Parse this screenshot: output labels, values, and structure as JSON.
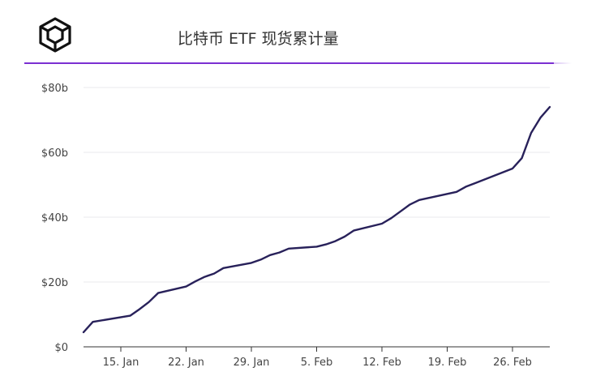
{
  "header": {
    "title": "比特币 ETF 现货累计量",
    "logo_icon": "cube-logo-icon",
    "accent_color": "#7b2fd1"
  },
  "chart_data": {
    "type": "line",
    "title": "比特币 ETF 现货累计量",
    "xlabel": "",
    "ylabel": "",
    "x_ticks": [
      "15. Jan",
      "22. Jan",
      "29. Jan",
      "5. Feb",
      "12. Feb",
      "19. Feb",
      "26. Feb"
    ],
    "y_ticks": [
      "$0",
      "$20b",
      "$40b",
      "$60b",
      "$80b"
    ],
    "ylim": [
      0,
      80
    ],
    "xlim": [
      "2024-01-11",
      "2024-03-01"
    ],
    "grid": true,
    "line_color": "#28215a",
    "series": [
      {
        "points": [
          [
            "2024-01-11",
            4.5
          ],
          [
            "2024-01-12",
            7.7
          ],
          [
            "2024-01-16",
            9.6
          ],
          [
            "2024-01-17",
            11.6
          ],
          [
            "2024-01-18",
            13.8
          ],
          [
            "2024-01-19",
            16.6
          ],
          [
            "2024-01-22",
            18.6
          ],
          [
            "2024-01-23",
            20.2
          ],
          [
            "2024-01-24",
            21.6
          ],
          [
            "2024-01-25",
            22.6
          ],
          [
            "2024-01-26",
            24.3
          ],
          [
            "2024-01-29",
            25.9
          ],
          [
            "2024-01-30",
            26.9
          ],
          [
            "2024-01-31",
            28.3
          ],
          [
            "2024-02-01",
            29.1
          ],
          [
            "2024-02-02",
            30.3
          ],
          [
            "2024-02-05",
            30.9
          ],
          [
            "2024-02-06",
            31.6
          ],
          [
            "2024-02-07",
            32.6
          ],
          [
            "2024-02-08",
            34.0
          ],
          [
            "2024-02-09",
            35.9
          ],
          [
            "2024-02-12",
            38.0
          ],
          [
            "2024-02-13",
            39.7
          ],
          [
            "2024-02-14",
            41.8
          ],
          [
            "2024-02-15",
            43.9
          ],
          [
            "2024-02-16",
            45.3
          ],
          [
            "2024-02-20",
            47.8
          ],
          [
            "2024-02-21",
            49.4
          ],
          [
            "2024-02-22",
            50.5
          ],
          [
            "2024-02-26",
            55.0
          ],
          [
            "2024-02-27",
            58.2
          ],
          [
            "2024-02-28",
            66.0
          ],
          [
            "2024-02-29",
            70.7
          ],
          [
            "2024-03-01",
            74.0
          ]
        ]
      }
    ]
  }
}
